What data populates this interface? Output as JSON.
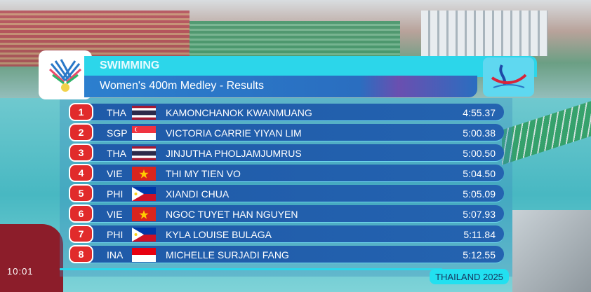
{
  "header": {
    "sport": "SWIMMING",
    "event": "Women's 400m Medley - Results"
  },
  "footer": {
    "label": "THAILAND 2025"
  },
  "clock": "10:01",
  "colors": {
    "header": "#2cd6ea",
    "row": "#1f5aa8",
    "rank": "#e12b2b"
  },
  "results": [
    {
      "rank": "1",
      "code": "THA",
      "flag": "thailand-flag",
      "name": "KAMONCHANOK KWANMUANG",
      "time": "4:55.37"
    },
    {
      "rank": "2",
      "code": "SGP",
      "flag": "singapore-flag",
      "name": "VICTORIA CARRIE YIYAN LIM",
      "time": "5:00.38"
    },
    {
      "rank": "3",
      "code": "THA",
      "flag": "thailand-flag",
      "name": "JINJUTHA PHOLJAMJUMRUS",
      "time": "5:00.50"
    },
    {
      "rank": "4",
      "code": "VIE",
      "flag": "vietnam-flag",
      "name": "THI MY TIEN VO",
      "time": "5:04.50"
    },
    {
      "rank": "5",
      "code": "PHI",
      "flag": "philippines-flag",
      "name": "XIANDI CHUA",
      "time": "5:05.09"
    },
    {
      "rank": "6",
      "code": "VIE",
      "flag": "vietnam-flag",
      "name": "NGOC TUYET HAN NGUYEN",
      "time": "5:07.93"
    },
    {
      "rank": "7",
      "code": "PHI",
      "flag": "philippines-flag",
      "name": "KYLA LOUISE BULAGA",
      "time": "5:11.84"
    },
    {
      "rank": "8",
      "code": "INA",
      "flag": "indonesia-flag",
      "name": "MICHELLE SURJADI FANG",
      "time": "5:12.55"
    }
  ]
}
